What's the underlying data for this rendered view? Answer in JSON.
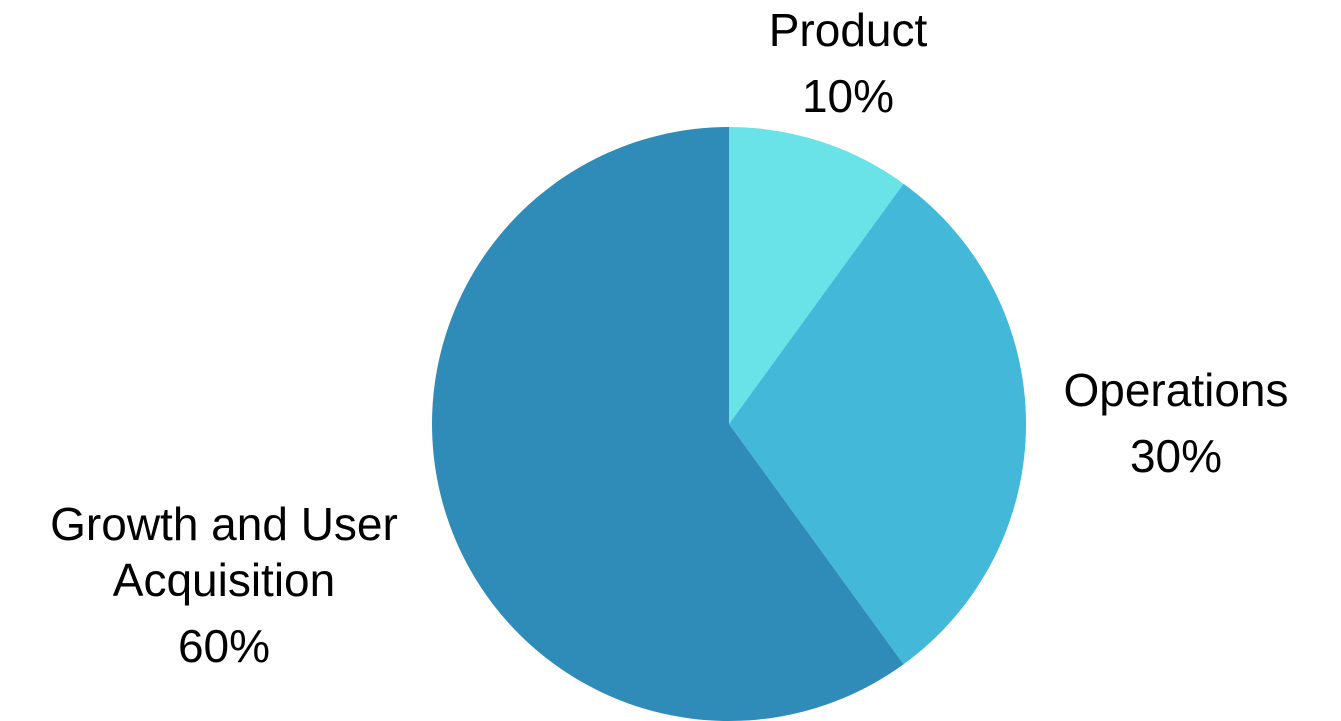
{
  "chart_data": {
    "type": "pie",
    "title": "",
    "slices": [
      {
        "label_lines": [
          "Product"
        ],
        "value": 10,
        "value_label": "10%",
        "color": "#6ae3e8"
      },
      {
        "label_lines": [
          "Operations"
        ],
        "value": 30,
        "value_label": "30%",
        "color": "#44b8d8"
      },
      {
        "label_lines": [
          "Growth and User",
          "Acquisition"
        ],
        "value": 60,
        "value_label": "60%",
        "color": "#2f8cb9"
      }
    ],
    "start_angle": "12 o'clock",
    "direction": "clockwise",
    "legend": "none",
    "labels": "outside"
  }
}
